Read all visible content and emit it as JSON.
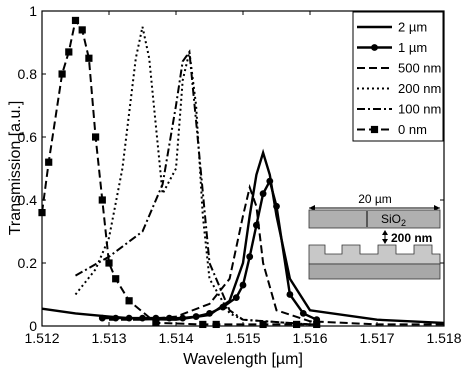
{
  "chart_data": {
    "type": "line",
    "xlabel": "Wavelength [µm]",
    "ylabel": "Transmission [a.u.]",
    "xlim": [
      1.512,
      1.518
    ],
    "ylim": [
      0,
      1
    ],
    "xticks": [
      "1.512",
      "1.513",
      "1.514",
      "1.515",
      "1.516",
      "1.517",
      "1.518"
    ],
    "yticks": [
      "0",
      "0.2",
      "0.4",
      "0.6",
      "0.8",
      "1"
    ],
    "grid": false,
    "legend_position": "top-right",
    "series": [
      {
        "name": "2 µm",
        "style": "solid",
        "marker": "none",
        "x": [
          1.512,
          1.5125,
          1.513,
          1.5135,
          1.514,
          1.5145,
          1.5148,
          1.515,
          1.5151,
          1.5152,
          1.5153,
          1.5154,
          1.5155,
          1.5157,
          1.516,
          1.517,
          1.518
        ],
        "y": [
          0.055,
          0.04,
          0.03,
          0.022,
          0.02,
          0.035,
          0.08,
          0.2,
          0.35,
          0.48,
          0.55,
          0.48,
          0.35,
          0.15,
          0.05,
          0.02,
          0.01
        ]
      },
      {
        "name": "1 µm",
        "style": "solid",
        "marker": "circle",
        "x": [
          1.5129,
          1.5131,
          1.5133,
          1.5135,
          1.5137,
          1.5139,
          1.5141,
          1.5143,
          1.5145,
          1.5147,
          1.5149,
          1.515,
          1.5151,
          1.5152,
          1.5153,
          1.5154,
          1.5155,
          1.5157,
          1.5159,
          1.5161
        ],
        "y": [
          0.025,
          0.025,
          0.025,
          0.025,
          0.025,
          0.025,
          0.025,
          0.03,
          0.04,
          0.06,
          0.09,
          0.13,
          0.22,
          0.32,
          0.42,
          0.46,
          0.38,
          0.1,
          0.04,
          0.02
        ]
      },
      {
        "name": "500 nm",
        "style": "dashed",
        "marker": "none",
        "x": [
          1.513,
          1.5135,
          1.514,
          1.5145,
          1.5148,
          1.515,
          1.5151,
          1.5152,
          1.5153,
          1.5155,
          1.516,
          1.517,
          1.518
        ],
        "y": [
          0.02,
          0.02,
          0.03,
          0.07,
          0.15,
          0.35,
          0.44,
          0.38,
          0.2,
          0.05,
          0.015,
          0.005,
          0.005
        ]
      },
      {
        "name": "200 nm",
        "style": "dotted",
        "marker": "none",
        "x": [
          1.5125,
          1.5128,
          1.513,
          1.5132,
          1.5134,
          1.5135,
          1.5136,
          1.5138,
          1.514,
          1.5141,
          1.5142,
          1.5143,
          1.5144,
          1.5145,
          1.5148,
          1.515,
          1.516
        ],
        "y": [
          0.1,
          0.18,
          0.28,
          0.5,
          0.85,
          0.95,
          0.85,
          0.42,
          0.5,
          0.78,
          0.87,
          0.7,
          0.35,
          0.15,
          0.04,
          0.02,
          0.005
        ]
      },
      {
        "name": "100 nm",
        "style": "dashdot",
        "marker": "none",
        "x": [
          1.5125,
          1.513,
          1.5135,
          1.5138,
          1.514,
          1.5141,
          1.5142,
          1.5143,
          1.5145,
          1.5148,
          1.515,
          1.516
        ],
        "y": [
          0.16,
          0.22,
          0.3,
          0.45,
          0.7,
          0.84,
          0.87,
          0.65,
          0.2,
          0.05,
          0.02,
          0.005
        ]
      },
      {
        "name": "0 nm",
        "style": "dashed",
        "marker": "square",
        "x": [
          1.512,
          1.5121,
          1.5123,
          1.5124,
          1.5125,
          1.5126,
          1.5127,
          1.5128,
          1.5129,
          1.513,
          1.5131,
          1.5133,
          1.5137,
          1.5144,
          1.5146,
          1.5153,
          1.5158,
          1.5161
        ],
        "y": [
          0.36,
          0.52,
          0.8,
          0.87,
          0.97,
          0.94,
          0.85,
          0.6,
          0.4,
          0.2,
          0.15,
          0.08,
          0.01,
          0.005,
          0.005,
          0.005,
          0.005,
          0.005
        ]
      }
    ],
    "inset": {
      "top_width_label": "20 µm",
      "material_label": "SiO",
      "material_subscript": "2",
      "gap_label": "200 nm"
    }
  }
}
